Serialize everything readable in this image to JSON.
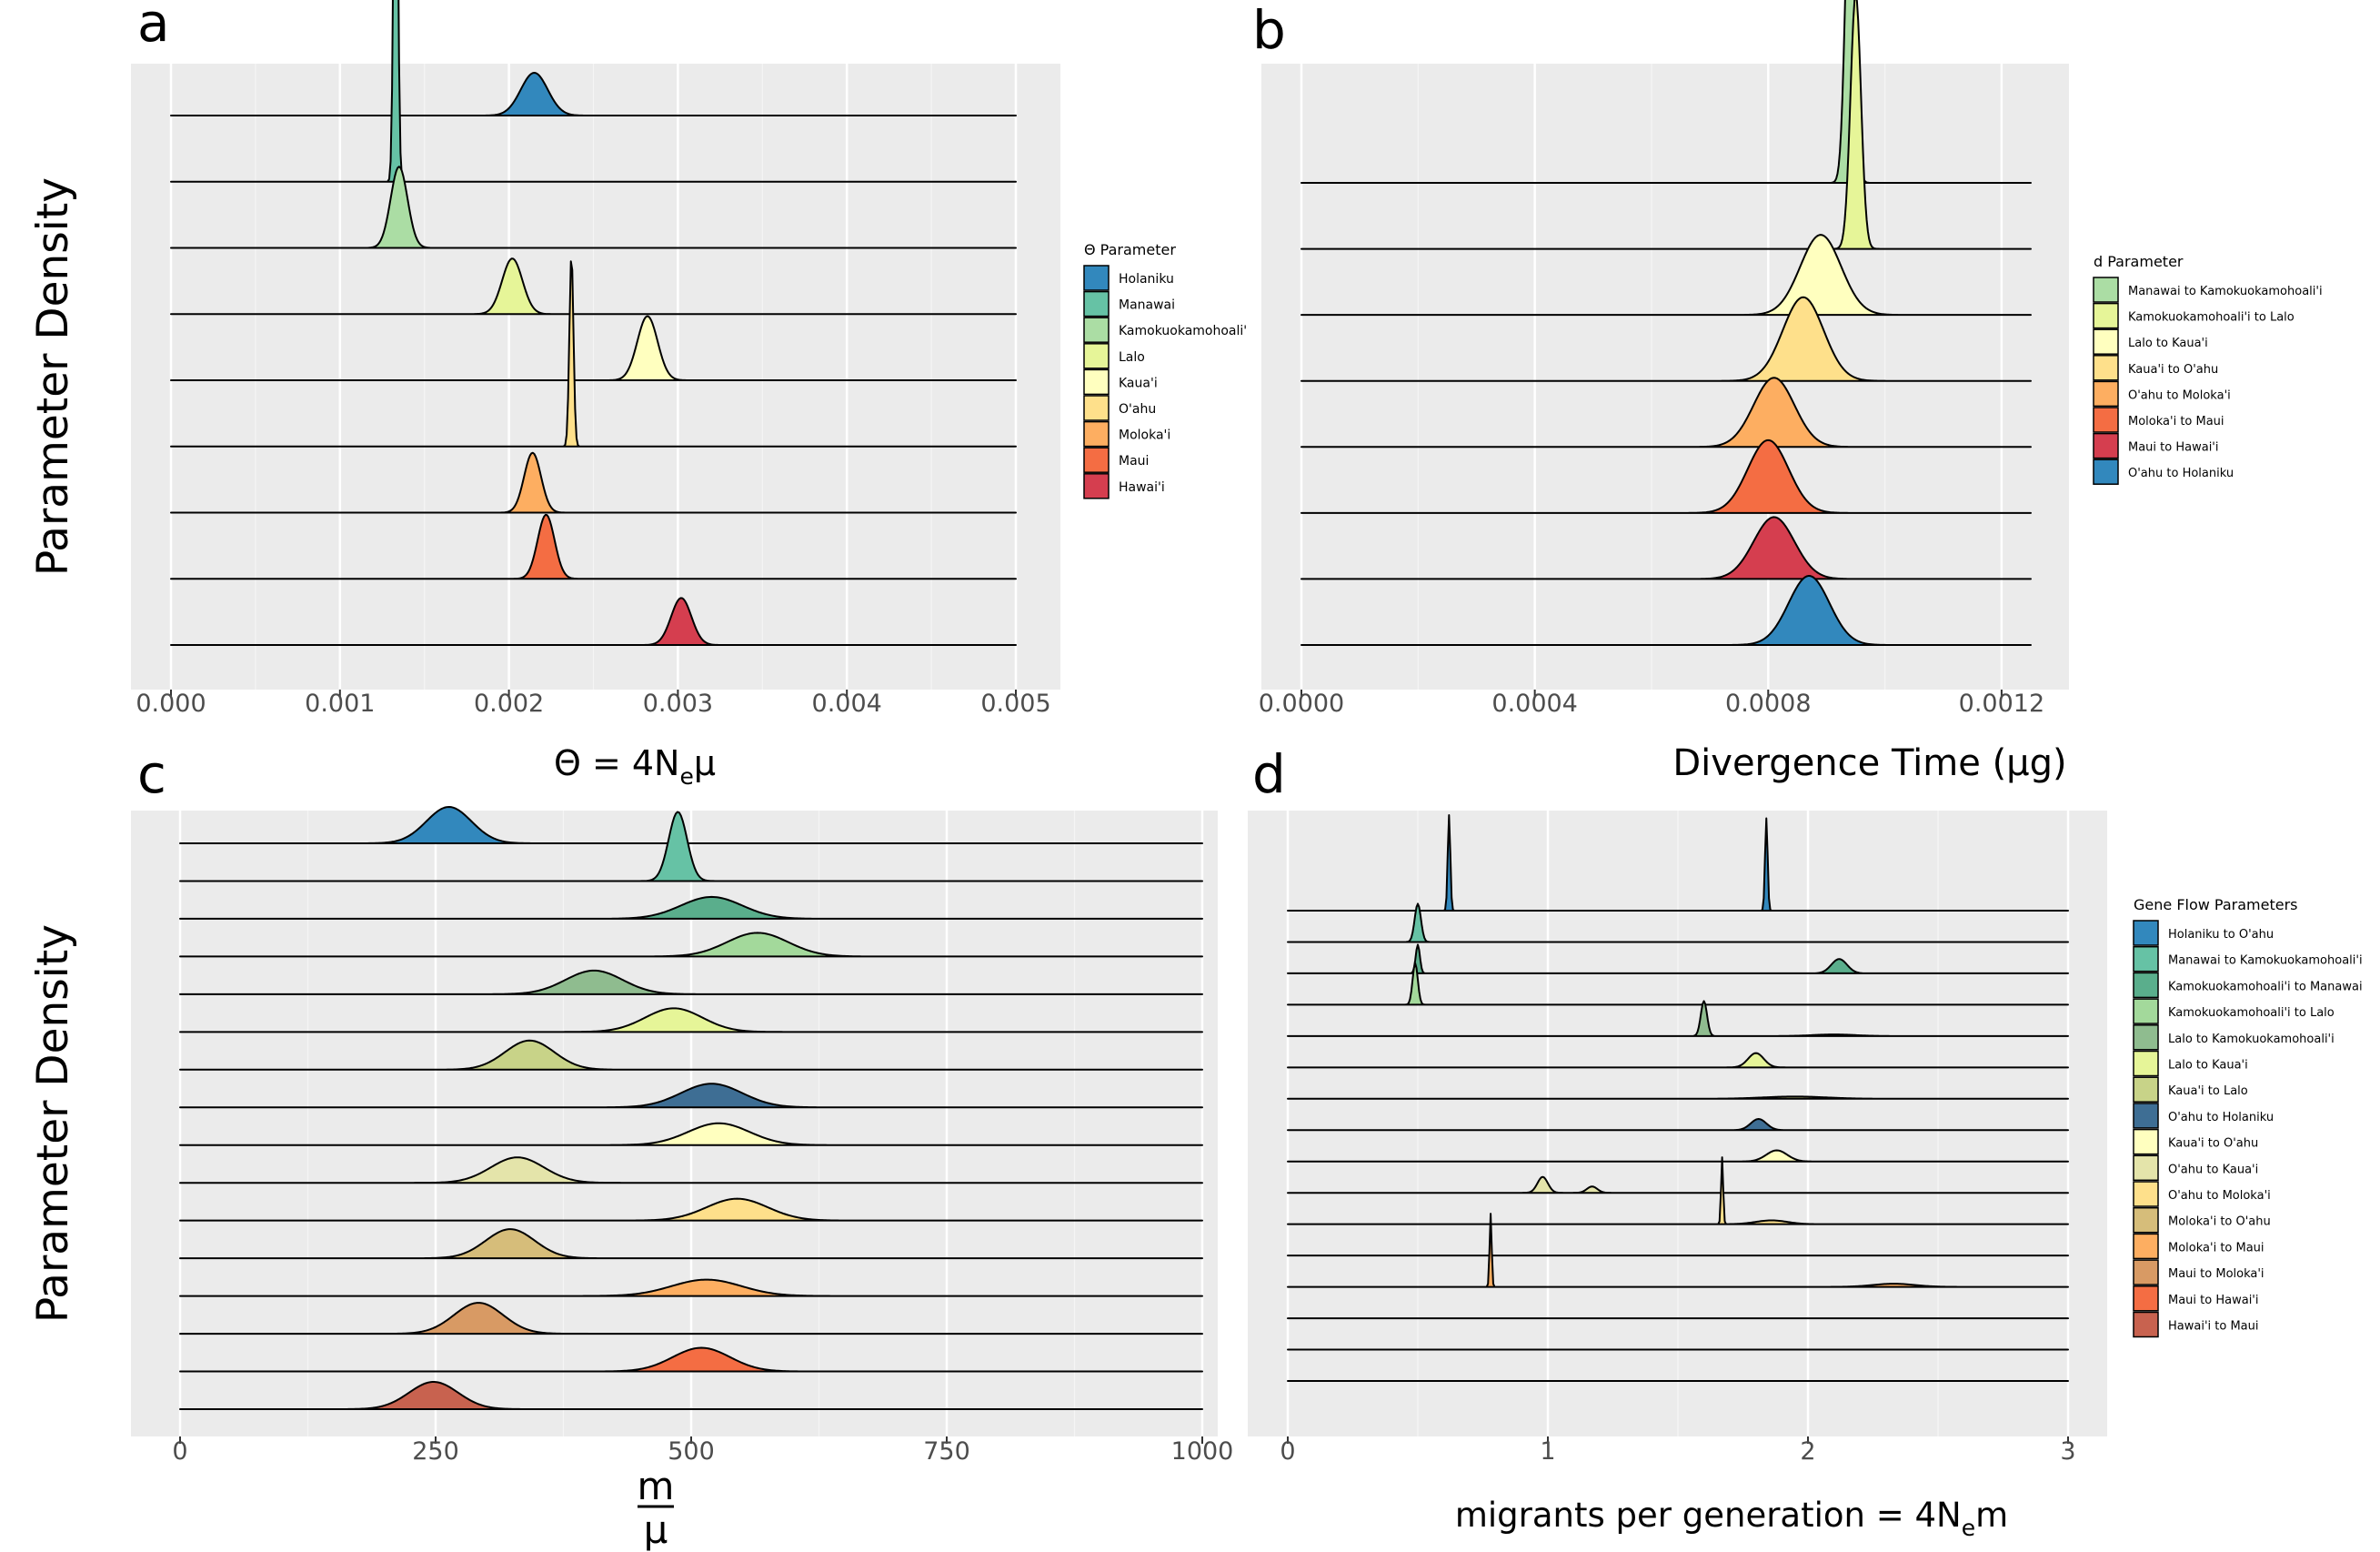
{
  "chart_data": [
    {
      "panel_label": "a",
      "type": "ridgeline",
      "xlabel": "Θ = 4Nₑμ",
      "ylabel": "Parameter Density",
      "xlim": [
        0,
        0.005
      ],
      "xticks": [
        0,
        0.001,
        0.002,
        0.003,
        0.004,
        0.005
      ],
      "xtick_labels": [
        "0.000",
        "0.001",
        "0.002",
        "0.003",
        "0.004",
        "0.005"
      ],
      "legend_title": "Θ Parameter",
      "legend_position": "right",
      "series": [
        {
          "name": "Holaniku",
          "color": "#3288BD",
          "peaks": [
            {
              "mu": 0.00215,
              "sd": 8e-05,
              "amp": 1.0
            }
          ]
        },
        {
          "name": "Manawai",
          "color": "#66C2A5",
          "peaks": [
            {
              "mu": 0.00133,
              "sd": 1.2e-05,
              "amp": 11.0
            }
          ]
        },
        {
          "name": "Kamokuokamohoali'",
          "color": "#ABDDA4",
          "peaks": [
            {
              "mu": 0.00135,
              "sd": 5e-05,
              "amp": 1.9
            }
          ]
        },
        {
          "name": "Lalo",
          "color": "#E6F598",
          "peaks": [
            {
              "mu": 0.00202,
              "sd": 6e-05,
              "amp": 1.3
            }
          ]
        },
        {
          "name": "Kaua'i",
          "color": "#FFFFBF",
          "peaks": [
            {
              "mu": 0.00282,
              "sd": 6e-05,
              "amp": 1.5
            }
          ]
        },
        {
          "name": "O'ahu",
          "color": "#FEE08B",
          "peaks": [
            {
              "mu": 0.00237,
              "sd": 1.2e-05,
              "amp": 4.5
            }
          ]
        },
        {
          "name": "Moloka'i",
          "color": "#FDAE61",
          "peaks": [
            {
              "mu": 0.00214,
              "sd": 5e-05,
              "amp": 1.4
            }
          ]
        },
        {
          "name": "Maui",
          "color": "#F46D43",
          "peaks": [
            {
              "mu": 0.00222,
              "sd": 5e-05,
              "amp": 1.5
            }
          ]
        },
        {
          "name": "Hawai'i",
          "color": "#D53E4F",
          "peaks": [
            {
              "mu": 0.00302,
              "sd": 6e-05,
              "amp": 1.1
            }
          ]
        }
      ]
    },
    {
      "panel_label": "b",
      "type": "ridgeline",
      "xlabel": "Divergence Time (μg)",
      "ylabel": "",
      "xlim": [
        0,
        0.00125
      ],
      "xticks": [
        0,
        0.0004,
        0.0008,
        0.0012
      ],
      "xtick_labels": [
        "0.0000",
        "0.0004",
        "0.0008",
        "0.0012"
      ],
      "legend_title": "d Parameter",
      "legend_position": "right",
      "series": [
        {
          "name": "Manawai to Kamokuokamohoali'i",
          "color": "#ABDDA4",
          "peaks": [
            {
              "mu": 0.00094,
              "sd": 8e-06,
              "amp": 8.5
            }
          ]
        },
        {
          "name": "Kamokuokamohoali'i to Lalo",
          "color": "#E6F598",
          "peaks": [
            {
              "mu": 0.00095,
              "sd": 9e-06,
              "amp": 7.0
            }
          ]
        },
        {
          "name": "Lalo to Kaua'i",
          "color": "#FFFFBF",
          "peaks": [
            {
              "mu": 0.00089,
              "sd": 3.5e-05,
              "amp": 2.2
            }
          ]
        },
        {
          "name": "Kaua'i to O'ahu",
          "color": "#FEE08B",
          "peaks": [
            {
              "mu": 0.00086,
              "sd": 3.5e-05,
              "amp": 2.3
            }
          ]
        },
        {
          "name": "O'ahu to Moloka'i",
          "color": "#FDAE61",
          "peaks": [
            {
              "mu": 0.00081,
              "sd": 3.5e-05,
              "amp": 1.9
            }
          ]
        },
        {
          "name": "Moloka'i to Maui",
          "color": "#F46D43",
          "peaks": [
            {
              "mu": 0.0008,
              "sd": 3.5e-05,
              "amp": 2.0
            }
          ]
        },
        {
          "name": "Maui to Hawai'i",
          "color": "#D53E4F",
          "peaks": [
            {
              "mu": 0.00081,
              "sd": 3.5e-05,
              "amp": 1.7
            }
          ]
        },
        {
          "name": "O'ahu to Holaniku",
          "color": "#3288BD",
          "peaks": [
            {
              "mu": 0.00087,
              "sd": 3.5e-05,
              "amp": 1.9
            }
          ]
        }
      ]
    },
    {
      "panel_label": "c",
      "type": "ridgeline",
      "xlabel_numerator": "m",
      "xlabel_denominator": "μ",
      "ylabel": "Parameter Density",
      "xlim": [
        0,
        1000
      ],
      "xticks": [
        0,
        250,
        500,
        750,
        1000
      ],
      "xtick_labels": [
        "0",
        "250",
        "500",
        "750",
        "1000"
      ],
      "series": [
        {
          "color": "#3288BD",
          "peaks": [
            {
              "mu": 263,
              "sd": 22,
              "amp": 1.0
            }
          ]
        },
        {
          "color": "#66C2A5",
          "peaks": [
            {
              "mu": 487,
              "sd": 9,
              "amp": 1.9
            }
          ]
        },
        {
          "color": "#5AAE8C",
          "peaks": [
            {
              "mu": 520,
              "sd": 30,
              "amp": 0.6
            }
          ]
        },
        {
          "color": "#A3D99B",
          "peaks": [
            {
              "mu": 565,
              "sd": 30,
              "amp": 0.65
            }
          ]
        },
        {
          "color": "#8FBC8F",
          "peaks": [
            {
              "mu": 405,
              "sd": 28,
              "amp": 0.65
            }
          ]
        },
        {
          "color": "#E6F598",
          "peaks": [
            {
              "mu": 483,
              "sd": 28,
              "amp": 0.65
            }
          ]
        },
        {
          "color": "#C8D388",
          "peaks": [
            {
              "mu": 342,
              "sd": 24,
              "amp": 0.8
            }
          ]
        },
        {
          "color": "#3E6E94",
          "peaks": [
            {
              "mu": 520,
              "sd": 30,
              "amp": 0.65
            }
          ]
        },
        {
          "color": "#FFFFBF",
          "peaks": [
            {
              "mu": 527,
              "sd": 30,
              "amp": 0.6
            }
          ]
        },
        {
          "color": "#E4E4AA",
          "peaks": [
            {
              "mu": 330,
              "sd": 26,
              "amp": 0.7
            }
          ]
        },
        {
          "color": "#FEE08B",
          "peaks": [
            {
              "mu": 545,
              "sd": 30,
              "amp": 0.6
            }
          ]
        },
        {
          "color": "#D6BD7A",
          "peaks": [
            {
              "mu": 323,
              "sd": 24,
              "amp": 0.8
            }
          ]
        },
        {
          "color": "#FDAE61",
          "peaks": [
            {
              "mu": 515,
              "sd": 34,
              "amp": 0.45
            }
          ]
        },
        {
          "color": "#D89A64",
          "peaks": [
            {
              "mu": 292,
              "sd": 24,
              "amp": 0.85
            }
          ]
        },
        {
          "color": "#F46D43",
          "peaks": [
            {
              "mu": 510,
              "sd": 28,
              "amp": 0.65
            }
          ]
        },
        {
          "color": "#C8624F",
          "peaks": [
            {
              "mu": 248,
              "sd": 24,
              "amp": 0.75
            }
          ]
        }
      ]
    },
    {
      "panel_label": "d",
      "type": "ridgeline",
      "xlabel": "migrants per generation = 4Nₑm",
      "ylabel": "",
      "xlim": [
        0,
        3
      ],
      "xticks": [
        0,
        1,
        2,
        3
      ],
      "xtick_labels": [
        "0",
        "1",
        "2",
        "3"
      ],
      "legend_title": "Gene Flow Parameters",
      "legend_position": "right",
      "series": [
        {
          "name": "Holaniku to O'ahu",
          "color": "#3288BD",
          "peaks": [
            {
              "mu": 0.62,
              "sd": 0.005,
              "amp": 3.0
            },
            {
              "mu": 1.84,
              "sd": 0.005,
              "amp": 2.9
            }
          ]
        },
        {
          "name": "Manawai to Kamokuokamohoali'i",
          "color": "#66C2A5",
          "peaks": [
            {
              "mu": 0.5,
              "sd": 0.012,
              "amp": 1.2
            }
          ]
        },
        {
          "name": "Kamokuokamohoali'i to Manawai",
          "color": "#5AAE8C",
          "peaks": [
            {
              "mu": 0.5,
              "sd": 0.008,
              "amp": 0.9
            },
            {
              "mu": 2.12,
              "sd": 0.03,
              "amp": 0.45
            }
          ]
        },
        {
          "name": "Kamokuokamohoali'i to Lalo",
          "color": "#A3D99B",
          "peaks": [
            {
              "mu": 0.49,
              "sd": 0.01,
              "amp": 1.3
            }
          ]
        },
        {
          "name": "Lalo to Kamokuokamohoali'i",
          "color": "#8FBC8F",
          "peaks": [
            {
              "mu": 1.6,
              "sd": 0.012,
              "amp": 1.1
            },
            {
              "mu": 2.1,
              "sd": 0.08,
              "amp": 0.05
            }
          ]
        },
        {
          "name": "Lalo to Kaua'i",
          "color": "#E6F598",
          "peaks": [
            {
              "mu": 1.8,
              "sd": 0.03,
              "amp": 0.45
            }
          ]
        },
        {
          "name": "Kaua'i to Lalo",
          "color": "#C8D388",
          "peaks": [
            {
              "mu": 1.95,
              "sd": 0.12,
              "amp": 0.07
            }
          ]
        },
        {
          "name": "O'ahu to Holaniku",
          "color": "#3E6E94",
          "peaks": [
            {
              "mu": 1.81,
              "sd": 0.03,
              "amp": 0.35
            }
          ]
        },
        {
          "name": "Kaua'i to O'ahu",
          "color": "#FFFFBF",
          "peaks": [
            {
              "mu": 1.88,
              "sd": 0.04,
              "amp": 0.35
            }
          ]
        },
        {
          "name": "O'ahu to Kaua'i",
          "color": "#E4E4AA",
          "peaks": [
            {
              "mu": 0.98,
              "sd": 0.02,
              "amp": 0.5
            },
            {
              "mu": 1.17,
              "sd": 0.02,
              "amp": 0.2
            }
          ]
        },
        {
          "name": "O'ahu to Moloka'i",
          "color": "#FEE08B",
          "peaks": [
            {
              "mu": 1.67,
              "sd": 0.004,
              "amp": 2.1
            },
            {
              "mu": 1.86,
              "sd": 0.06,
              "amp": 0.12
            }
          ]
        },
        {
          "name": "Moloka'i to O'ahu",
          "color": "#D6BD7A",
          "peaks": []
        },
        {
          "name": "Moloka'i to Maui",
          "color": "#FDAE61",
          "peaks": [
            {
              "mu": 0.78,
              "sd": 0.004,
              "amp": 2.3
            },
            {
              "mu": 2.33,
              "sd": 0.08,
              "amp": 0.1
            }
          ]
        },
        {
          "name": "Maui to Moloka'i",
          "color": "#D89A64",
          "peaks": []
        },
        {
          "name": "Maui to Hawai'i",
          "color": "#F46D43",
          "peaks": []
        },
        {
          "name": "Hawai'i to Maui",
          "color": "#C8624F",
          "peaks": []
        }
      ]
    }
  ]
}
